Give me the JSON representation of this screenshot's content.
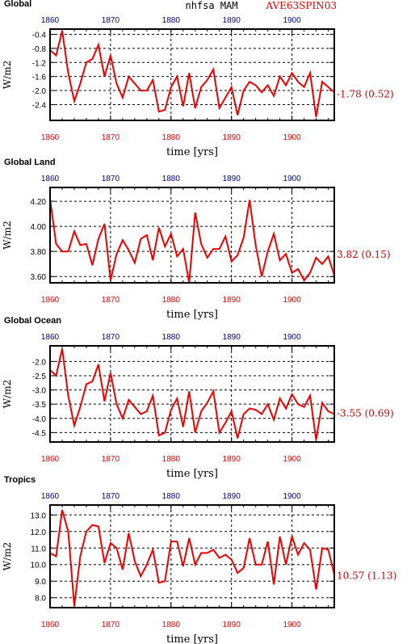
{
  "header": {
    "center_title": "nhfsa  MAM",
    "right_title": "AVE63SPIN03"
  },
  "colors": {
    "series": "#ee0000",
    "top_ticks": "#00008b",
    "bottom_ticks": "#ee0000",
    "stat_text": "#cc0000"
  },
  "chart_data": [
    {
      "type": "line",
      "title": "Global",
      "xlabel": "time [yrs]",
      "ylabel": "W/m2",
      "xlim": [
        1860,
        1907
      ],
      "ylim": [
        -2.85,
        -0.25
      ],
      "xticks": [
        1860,
        1870,
        1880,
        1890,
        1900
      ],
      "yticks": [
        -0.4,
        -0.8,
        -1.2,
        -1.6,
        -2.0,
        -2.4
      ],
      "ytick_labels": [
        "-0.4",
        "-0.8",
        "-1.2",
        "-1.6",
        "-2.0",
        "-2.4"
      ],
      "grid": true,
      "stat": "-1.78 (0.52)",
      "x": [
        1860,
        1861,
        1862,
        1863,
        1864,
        1865,
        1866,
        1867,
        1868,
        1869,
        1870,
        1871,
        1872,
        1873,
        1874,
        1875,
        1876,
        1877,
        1878,
        1879,
        1880,
        1881,
        1882,
        1883,
        1884,
        1885,
        1886,
        1887,
        1888,
        1889,
        1890,
        1891,
        1892,
        1893,
        1894,
        1895,
        1896,
        1897,
        1898,
        1899,
        1900,
        1901,
        1902,
        1903,
        1904,
        1905,
        1906,
        1907
      ],
      "values": [
        -0.85,
        -1.0,
        -0.3,
        -1.5,
        -2.3,
        -1.8,
        -1.2,
        -1.1,
        -0.7,
        -1.6,
        -1.0,
        -1.8,
        -2.2,
        -1.6,
        -1.8,
        -2.0,
        -2.0,
        -1.7,
        -2.6,
        -2.55,
        -1.9,
        -1.6,
        -2.45,
        -1.5,
        -2.5,
        -1.9,
        -1.7,
        -1.4,
        -2.5,
        -2.2,
        -1.9,
        -2.7,
        -2.0,
        -1.75,
        -1.85,
        -2.05,
        -1.85,
        -2.15,
        -1.6,
        -1.85,
        -1.5,
        -1.75,
        -1.9,
        -1.5,
        -2.75,
        -1.75,
        -1.9,
        -2.05
      ]
    },
    {
      "type": "line",
      "title": "Global Land",
      "xlabel": "time [yrs]",
      "ylabel": "W/m2",
      "xlim": [
        1860,
        1907
      ],
      "ylim": [
        3.55,
        4.31
      ],
      "xticks": [
        1860,
        1870,
        1880,
        1890,
        1900
      ],
      "yticks": [
        4.2,
        4.0,
        3.8,
        3.6
      ],
      "ytick_labels": [
        "4.20",
        "4.00",
        "3.80",
        "3.60"
      ],
      "grid": true,
      "stat": "3.82 (0.15)",
      "x": [
        1860,
        1861,
        1862,
        1863,
        1864,
        1865,
        1866,
        1867,
        1868,
        1869,
        1870,
        1871,
        1872,
        1873,
        1874,
        1875,
        1876,
        1877,
        1878,
        1879,
        1880,
        1881,
        1882,
        1883,
        1884,
        1885,
        1886,
        1887,
        1888,
        1889,
        1890,
        1891,
        1892,
        1893,
        1894,
        1895,
        1896,
        1897,
        1898,
        1899,
        1900,
        1901,
        1902,
        1903,
        1904,
        1905,
        1906,
        1907
      ],
      "values": [
        4.22,
        3.86,
        3.8,
        3.8,
        3.96,
        3.85,
        3.86,
        3.69,
        3.9,
        4.02,
        3.57,
        3.78,
        3.89,
        3.81,
        3.71,
        3.9,
        3.93,
        3.73,
        3.99,
        3.84,
        3.94,
        3.76,
        3.82,
        3.55,
        4.11,
        3.86,
        3.75,
        3.82,
        3.82,
        3.92,
        3.72,
        3.77,
        3.91,
        4.21,
        3.85,
        3.6,
        3.8,
        3.94,
        3.73,
        3.78,
        3.63,
        3.66,
        3.57,
        3.63,
        3.75,
        3.7,
        3.76,
        3.61
      ]
    },
    {
      "type": "line",
      "title": "Global Ocean",
      "xlabel": "time [yrs]",
      "ylabel": "W/m2",
      "xlim": [
        1860,
        1907
      ],
      "ylim": [
        -4.83,
        -1.45
      ],
      "xticks": [
        1860,
        1870,
        1880,
        1890,
        1900
      ],
      "yticks": [
        -2.0,
        -2.5,
        -3.0,
        -3.5,
        -4.0,
        -4.5
      ],
      "ytick_labels": [
        "-2.0",
        "-2.5",
        "-3.0",
        "-3.5",
        "-4.0",
        "-4.5"
      ],
      "grid": true,
      "stat": "-3.55 (0.69)",
      "x": [
        1860,
        1861,
        1862,
        1863,
        1864,
        1865,
        1866,
        1867,
        1868,
        1869,
        1870,
        1871,
        1872,
        1873,
        1874,
        1875,
        1876,
        1877,
        1878,
        1879,
        1880,
        1881,
        1882,
        1883,
        1884,
        1885,
        1886,
        1887,
        1888,
        1889,
        1890,
        1891,
        1892,
        1893,
        1894,
        1895,
        1896,
        1897,
        1898,
        1899,
        1900,
        1901,
        1902,
        1903,
        1904,
        1905,
        1906,
        1907
      ],
      "values": [
        -2.3,
        -2.5,
        -1.55,
        -3.2,
        -4.25,
        -3.6,
        -2.8,
        -2.7,
        -2.1,
        -3.4,
        -2.4,
        -3.5,
        -4.0,
        -3.35,
        -3.6,
        -3.85,
        -3.75,
        -3.2,
        -4.6,
        -4.5,
        -3.7,
        -3.3,
        -4.3,
        -3.05,
        -4.5,
        -3.75,
        -3.45,
        -3.05,
        -4.5,
        -4.15,
        -3.75,
        -4.7,
        -3.85,
        -3.65,
        -3.7,
        -3.85,
        -3.5,
        -4.05,
        -3.3,
        -3.65,
        -3.15,
        -3.5,
        -3.6,
        -3.2,
        -4.75,
        -3.45,
        -3.75,
        -3.85
      ]
    },
    {
      "type": "line",
      "title": "Tropics",
      "xlabel": "time [yrs]",
      "ylabel": "W/m2",
      "xlim": [
        1860,
        1907
      ],
      "ylim": [
        7.4,
        13.6
      ],
      "xticks": [
        1860,
        1870,
        1880,
        1890,
        1900
      ],
      "yticks": [
        13.0,
        12.0,
        11.0,
        10.0,
        9.0,
        8.0
      ],
      "ytick_labels": [
        "13.0",
        "12.0",
        "11.0",
        "10.0",
        "9.0",
        "8.0"
      ],
      "grid": true,
      "stat": "10.57 (1.13)",
      "x": [
        1860,
        1861,
        1862,
        1863,
        1864,
        1865,
        1866,
        1867,
        1868,
        1869,
        1870,
        1871,
        1872,
        1873,
        1874,
        1875,
        1876,
        1877,
        1878,
        1879,
        1880,
        1881,
        1882,
        1883,
        1884,
        1885,
        1886,
        1887,
        1888,
        1889,
        1890,
        1891,
        1892,
        1893,
        1894,
        1895,
        1896,
        1897,
        1898,
        1899,
        1900,
        1901,
        1902,
        1903,
        1904,
        1905,
        1906,
        1907
      ],
      "values": [
        10.7,
        10.5,
        13.3,
        12.0,
        7.5,
        10.5,
        12.0,
        12.4,
        12.3,
        10.1,
        11.3,
        11.0,
        9.7,
        11.9,
        10.2,
        9.3,
        10.0,
        10.9,
        8.9,
        9.0,
        11.4,
        11.4,
        9.9,
        11.6,
        10.0,
        10.7,
        10.7,
        10.9,
        10.4,
        10.6,
        10.3,
        9.5,
        9.8,
        11.6,
        10.0,
        10.0,
        11.4,
        8.8,
        11.7,
        10.0,
        11.7,
        10.6,
        11.3,
        10.9,
        8.5,
        11.0,
        10.9,
        9.4
      ]
    }
  ]
}
